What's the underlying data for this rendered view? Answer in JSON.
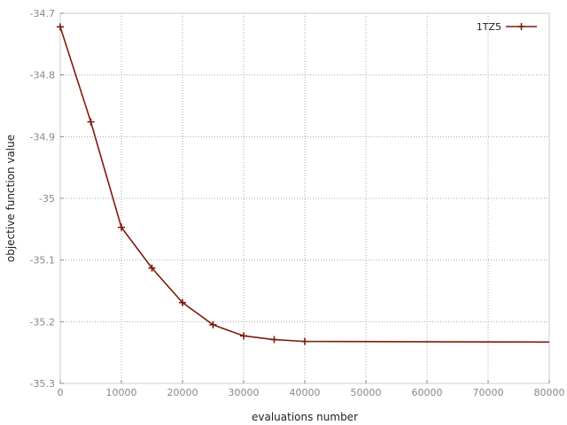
{
  "chart_data": {
    "type": "line",
    "xlabel": "evaluations number",
    "ylabel": "objective function value",
    "xlim": [
      0,
      80000
    ],
    "ylim": [
      -35.3,
      -34.7
    ],
    "x_ticks": [
      0,
      10000,
      20000,
      30000,
      40000,
      50000,
      60000,
      70000,
      80000
    ],
    "x_tick_labels": [
      "0",
      "10000",
      "20000",
      "30000",
      "40000",
      "50000",
      "60000",
      "70000",
      "80000"
    ],
    "y_ticks": [
      -34.7,
      -34.8,
      -34.9,
      -35.0,
      -35.1,
      -35.2,
      -35.3
    ],
    "y_tick_labels": [
      "-34.7",
      "-34.8",
      "-34.9",
      "-35",
      "-35.1",
      "-35.2",
      "-35.3"
    ],
    "grid": true,
    "legend_position": "top-right",
    "series": [
      {
        "name": "1TZ5",
        "color": "#7f1a0e",
        "marker": "plus",
        "x": [
          0,
          5000,
          10000,
          15000,
          20000,
          25000,
          30000,
          35000,
          40000,
          80000
        ],
        "y": [
          -34.722,
          -34.876,
          -35.047,
          -35.113,
          -35.169,
          -35.205,
          -35.223,
          -35.229,
          -35.232,
          -35.233
        ],
        "marker_x": [
          0,
          5000,
          10000,
          15000,
          20000,
          25000,
          30000,
          35000,
          40000
        ]
      }
    ]
  }
}
